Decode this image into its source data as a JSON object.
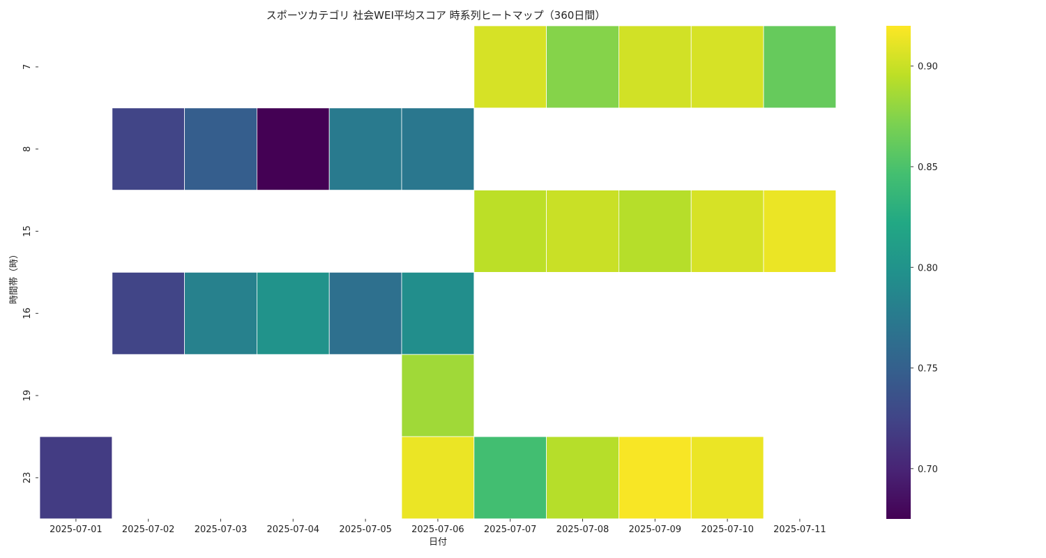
{
  "chart_data": {
    "type": "heatmap",
    "title": "スポーツカテゴリ 社会WEI平均スコア 時系列ヒートマップ（360日間）",
    "xlabel": "日付",
    "ylabel": "時間帯（時）",
    "x": [
      "2025-07-01",
      "2025-07-02",
      "2025-07-03",
      "2025-07-04",
      "2025-07-05",
      "2025-07-06",
      "2025-07-07",
      "2025-07-08",
      "2025-07-09",
      "2025-07-10",
      "2025-07-11"
    ],
    "y": [
      "7",
      "8",
      "15",
      "16",
      "19",
      "23"
    ],
    "values": [
      [
        null,
        null,
        null,
        null,
        null,
        null,
        0.905,
        0.875,
        0.903,
        0.905,
        0.862
      ],
      [
        null,
        0.725,
        0.748,
        0.675,
        0.775,
        0.772,
        null,
        null,
        null,
        null,
        null
      ],
      [
        null,
        null,
        null,
        null,
        null,
        null,
        0.895,
        0.9,
        0.893,
        0.905,
        0.913
      ],
      [
        null,
        0.725,
        0.782,
        0.8,
        0.765,
        0.795,
        null,
        null,
        null,
        null,
        null
      ],
      [
        null,
        null,
        null,
        null,
        null,
        0.885,
        null,
        null,
        null,
        null,
        null
      ],
      [
        0.718,
        null,
        null,
        null,
        null,
        0.913,
        0.845,
        0.893,
        0.918,
        0.913,
        null
      ]
    ],
    "colorbar": {
      "colormap": "viridis",
      "vmin": 0.675,
      "vmax": 0.92,
      "ticks": [
        "0.70",
        "0.75",
        "0.80",
        "0.85",
        "0.90"
      ]
    }
  }
}
